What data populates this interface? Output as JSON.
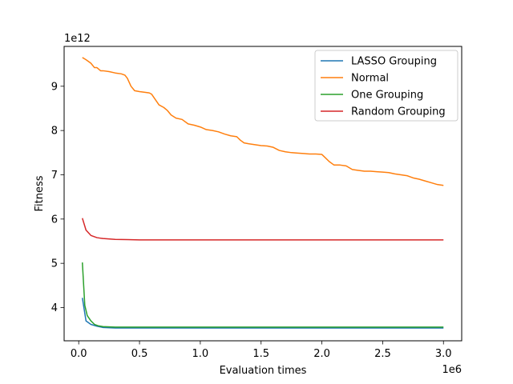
{
  "chart_data": {
    "type": "line",
    "title": "",
    "xlabel": "Evaluation times",
    "ylabel": "Fitness",
    "x_offset_label": "1e6",
    "y_offset_label": "1e12",
    "x_ticks": [
      0.0,
      0.5,
      1.0,
      1.5,
      2.0,
      2.5,
      3.0
    ],
    "x_tick_labels": [
      "0.0",
      "0.5",
      "1.0",
      "1.5",
      "2.0",
      "2.5",
      "3.0"
    ],
    "y_ticks": [
      4,
      5,
      6,
      7,
      8,
      9
    ],
    "y_tick_labels": [
      "4",
      "5",
      "6",
      "7",
      "8",
      "9"
    ],
    "xlim": [
      -0.12,
      3.15
    ],
    "ylim": [
      3.25,
      9.9
    ],
    "x_unit_scale": "1e6",
    "y_unit_scale": "1e12",
    "grid": false,
    "legend_position": "upper right",
    "series": [
      {
        "name": "LASSO Grouping",
        "color": "#1f77b4",
        "x": [
          0.03,
          0.06,
          0.1,
          0.15,
          0.2,
          0.3,
          0.5,
          1.0,
          1.5,
          2.0,
          2.5,
          3.0
        ],
        "y": [
          4.22,
          3.7,
          3.62,
          3.58,
          3.55,
          3.54,
          3.54,
          3.54,
          3.54,
          3.54,
          3.54,
          3.54
        ]
      },
      {
        "name": "Normal",
        "color": "#ff7f0e",
        "x": [
          0.03,
          0.06,
          0.1,
          0.13,
          0.15,
          0.18,
          0.2,
          0.25,
          0.3,
          0.35,
          0.38,
          0.4,
          0.43,
          0.46,
          0.5,
          0.55,
          0.58,
          0.6,
          0.63,
          0.66,
          0.7,
          0.73,
          0.76,
          0.8,
          0.85,
          0.9,
          0.95,
          1.0,
          1.05,
          1.1,
          1.15,
          1.2,
          1.25,
          1.3,
          1.33,
          1.36,
          1.4,
          1.45,
          1.5,
          1.55,
          1.6,
          1.65,
          1.7,
          1.75,
          1.8,
          1.85,
          1.9,
          1.95,
          2.0,
          2.03,
          2.06,
          2.1,
          2.15,
          2.2,
          2.25,
          2.3,
          2.35,
          2.4,
          2.45,
          2.5,
          2.55,
          2.6,
          2.65,
          2.7,
          2.75,
          2.8,
          2.85,
          2.9,
          2.95,
          3.0
        ],
        "y": [
          9.65,
          9.6,
          9.52,
          9.42,
          9.42,
          9.35,
          9.35,
          9.33,
          9.3,
          9.28,
          9.25,
          9.18,
          9.0,
          8.9,
          8.88,
          8.86,
          8.85,
          8.82,
          8.7,
          8.58,
          8.52,
          8.45,
          8.35,
          8.28,
          8.25,
          8.15,
          8.12,
          8.08,
          8.02,
          8.0,
          7.97,
          7.92,
          7.88,
          7.86,
          7.78,
          7.72,
          7.7,
          7.68,
          7.66,
          7.65,
          7.62,
          7.55,
          7.52,
          7.5,
          7.49,
          7.48,
          7.47,
          7.47,
          7.46,
          7.38,
          7.3,
          7.22,
          7.22,
          7.2,
          7.12,
          7.1,
          7.08,
          7.08,
          7.07,
          7.06,
          7.05,
          7.02,
          7.0,
          6.98,
          6.93,
          6.9,
          6.86,
          6.82,
          6.78,
          6.76
        ]
      },
      {
        "name": "One Grouping",
        "color": "#2ca02c",
        "x": [
          0.03,
          0.05,
          0.07,
          0.1,
          0.13,
          0.16,
          0.2,
          0.3,
          0.5,
          1.0,
          1.5,
          2.0,
          2.5,
          3.0
        ],
        "y": [
          5.02,
          4.05,
          3.82,
          3.7,
          3.62,
          3.59,
          3.57,
          3.56,
          3.56,
          3.56,
          3.56,
          3.56,
          3.56,
          3.56
        ]
      },
      {
        "name": "Random Grouping",
        "color": "#d62728",
        "x": [
          0.03,
          0.06,
          0.1,
          0.15,
          0.2,
          0.3,
          0.4,
          0.5,
          0.6,
          0.8,
          1.0,
          1.5,
          2.0,
          2.5,
          3.0
        ],
        "y": [
          6.02,
          5.75,
          5.63,
          5.58,
          5.56,
          5.54,
          5.535,
          5.53,
          5.53,
          5.53,
          5.53,
          5.53,
          5.53,
          5.53,
          5.53
        ]
      }
    ]
  }
}
